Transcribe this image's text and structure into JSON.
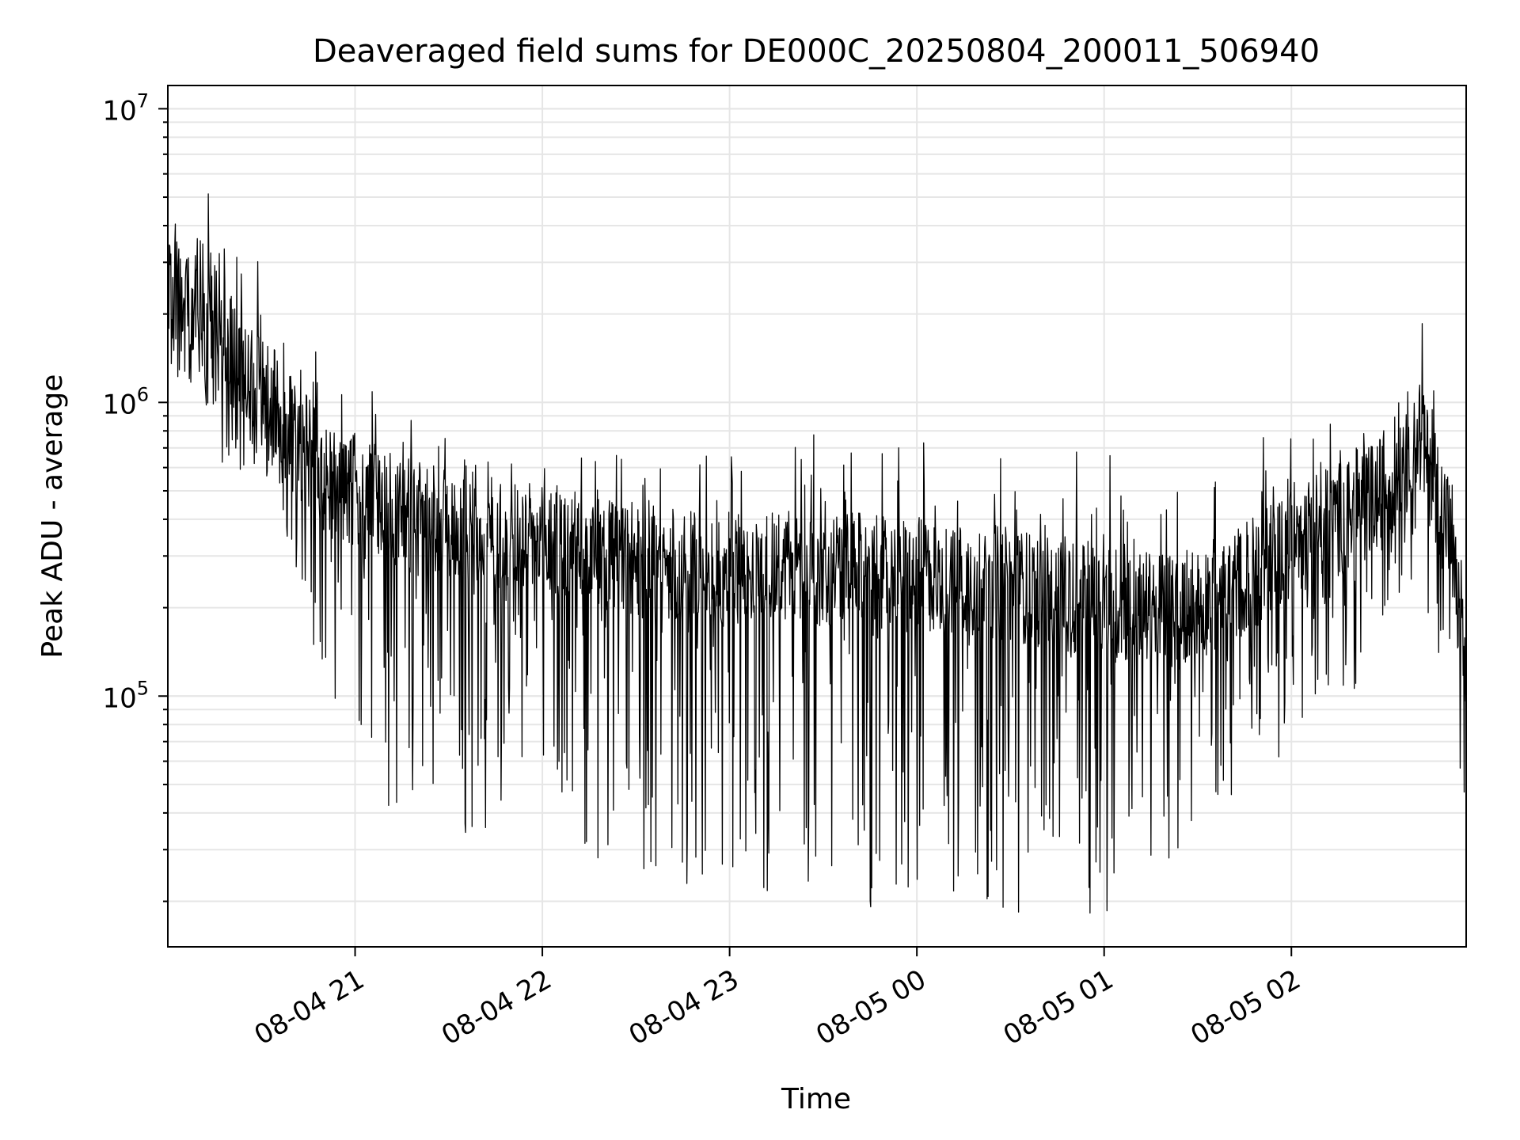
{
  "chart_data": {
    "type": "line",
    "title": "Deaveraged field sums for DE000C_20250804_200011_506940",
    "xlabel": "Time",
    "ylabel": "Peak ADU - average",
    "yscale": "log",
    "ylim": [
      14000,
      12000000
    ],
    "xlim": [
      "2025-08-04 20:00",
      "2025-08-05 02:56"
    ],
    "grid": true,
    "x_ticks": [
      {
        "at": "2025-08-04 21:00",
        "label": "08-04 21"
      },
      {
        "at": "2025-08-04 22:00",
        "label": "08-04 22"
      },
      {
        "at": "2025-08-04 23:00",
        "label": "08-04 23"
      },
      {
        "at": "2025-08-05 00:00",
        "label": "08-05 00"
      },
      {
        "at": "2025-08-05 01:00",
        "label": "08-05 01"
      },
      {
        "at": "2025-08-05 02:00",
        "label": "08-05 02"
      }
    ],
    "y_ticks": [
      {
        "value": 100000,
        "base": "10",
        "exp": "5"
      },
      {
        "value": 1000000,
        "base": "10",
        "exp": "6"
      },
      {
        "value": 10000000,
        "base": "10",
        "exp": "7"
      }
    ],
    "series_envelope": {
      "x": [
        "2025-08-04 20:00",
        "2025-08-04 20:10",
        "2025-08-04 20:20",
        "2025-08-04 20:30",
        "2025-08-04 20:40",
        "2025-08-04 20:50",
        "2025-08-04 21:00",
        "2025-08-04 21:10",
        "2025-08-04 21:20",
        "2025-08-04 21:30",
        "2025-08-04 21:40",
        "2025-08-04 21:50",
        "2025-08-04 22:00",
        "2025-08-04 22:10",
        "2025-08-04 22:20",
        "2025-08-04 22:30",
        "2025-08-04 22:40",
        "2025-08-04 22:50",
        "2025-08-04 23:00",
        "2025-08-04 23:10",
        "2025-08-04 23:20",
        "2025-08-04 23:30",
        "2025-08-04 23:40",
        "2025-08-04 23:50",
        "2025-08-05 00:00",
        "2025-08-05 00:10",
        "2025-08-05 00:20",
        "2025-08-05 00:30",
        "2025-08-05 00:40",
        "2025-08-05 00:50",
        "2025-08-05 01:00",
        "2025-08-05 01:10",
        "2025-08-05 01:20",
        "2025-08-05 01:30",
        "2025-08-05 01:40",
        "2025-08-05 01:50",
        "2025-08-05 02:00",
        "2025-08-05 02:10",
        "2025-08-05 02:20",
        "2025-08-05 02:30",
        "2025-08-05 02:40",
        "2025-08-05 02:50",
        "2025-08-05 02:56"
      ],
      "upper": [
        3800000,
        6800000,
        6300000,
        2900000,
        2000000,
        1600000,
        1500000,
        1000000,
        900000,
        900000,
        850000,
        800000,
        780000,
        760000,
        750000,
        740000,
        740000,
        730000,
        740000,
        760000,
        780000,
        790000,
        780000,
        770000,
        750000,
        740000,
        750000,
        760000,
        780000,
        800000,
        800000,
        780000,
        760000,
        650000,
        600000,
        750000,
        1000000,
        900000,
        850000,
        900000,
        2800000,
        1700000,
        1100000
      ],
      "lower": [
        1400000,
        900000,
        550000,
        600000,
        300000,
        90000,
        80000,
        40000,
        40000,
        35000,
        30000,
        50000,
        45000,
        28000,
        25000,
        24000,
        22000,
        20000,
        20000,
        19000,
        18000,
        17000,
        18000,
        20000,
        19000,
        18000,
        17000,
        18000,
        19000,
        18000,
        17000,
        18000,
        25000,
        30000,
        32000,
        45000,
        70000,
        90000,
        100000,
        180000,
        250000,
        110000,
        28000
      ],
      "typical": [
        2200000,
        2500000,
        1500000,
        1100000,
        800000,
        550000,
        500000,
        450000,
        400000,
        400000,
        380000,
        350000,
        330000,
        320000,
        300000,
        290000,
        280000,
        270000,
        270000,
        280000,
        280000,
        270000,
        270000,
        260000,
        260000,
        250000,
        250000,
        240000,
        230000,
        220000,
        210000,
        200000,
        200000,
        210000,
        230000,
        280000,
        340000,
        380000,
        420000,
        500000,
        800000,
        400000,
        120000
      ]
    }
  }
}
